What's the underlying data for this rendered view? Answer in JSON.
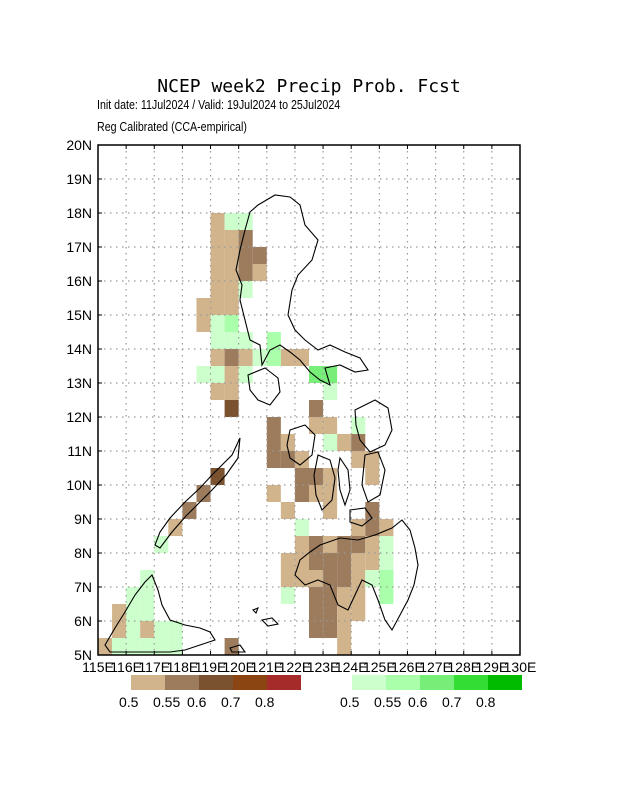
{
  "header": {
    "title": "NCEP week2 Precip Prob. Fcst",
    "init_line": "Init date: 11Jul2024 / Valid: 19Jul2024 to 25Jul2024",
    "method_line": "Reg Calibrated (CCA-empirical)"
  },
  "map": {
    "lon_range": [
      115,
      130
    ],
    "lat_range": [
      5,
      20
    ],
    "lat_labels": [
      "5N",
      "6N",
      "7N",
      "8N",
      "9N",
      "10N",
      "11N",
      "12N",
      "13N",
      "14N",
      "15N",
      "16N",
      "17N",
      "18N",
      "19N",
      "20N"
    ],
    "lon_labels": [
      "115E",
      "116E",
      "117E",
      "118E",
      "119E",
      "120E",
      "121E",
      "122E",
      "123E",
      "124E",
      "125E",
      "126E",
      "127E",
      "128E",
      "129E",
      "130E"
    ],
    "gridlines": "dotted",
    "cell_size_deg": 0.5,
    "dry_colors": [
      "#d2b48c",
      "#9c7c5c",
      "#7a5230",
      "#8b4513",
      "#a52a2a"
    ],
    "wet_colors": [
      "#ccffcc",
      "#aaffaa",
      "#77ee77",
      "#33dd33",
      "#00bb00"
    ],
    "cells": [
      {
        "lon": 119.25,
        "lat": 17.75,
        "cat": "d1"
      },
      {
        "lon": 119.75,
        "lat": 17.75,
        "cat": "w1"
      },
      {
        "lon": 120.25,
        "lat": 17.75,
        "cat": "w1"
      },
      {
        "lon": 119.25,
        "lat": 17.25,
        "cat": "d1"
      },
      {
        "lon": 119.75,
        "lat": 17.25,
        "cat": "d1"
      },
      {
        "lon": 120.25,
        "lat": 17.25,
        "cat": "d2"
      },
      {
        "lon": 119.25,
        "lat": 16.75,
        "cat": "d1"
      },
      {
        "lon": 119.75,
        "lat": 16.75,
        "cat": "d1"
      },
      {
        "lon": 120.25,
        "lat": 16.75,
        "cat": "d2"
      },
      {
        "lon": 120.75,
        "lat": 16.75,
        "cat": "d2"
      },
      {
        "lon": 119.25,
        "lat": 16.25,
        "cat": "d1"
      },
      {
        "lon": 119.75,
        "lat": 16.25,
        "cat": "d1"
      },
      {
        "lon": 120.25,
        "lat": 16.25,
        "cat": "d2"
      },
      {
        "lon": 120.75,
        "lat": 16.25,
        "cat": "d1"
      },
      {
        "lon": 119.25,
        "lat": 15.75,
        "cat": "d1"
      },
      {
        "lon": 119.75,
        "lat": 15.75,
        "cat": "d1"
      },
      {
        "lon": 120.25,
        "lat": 15.75,
        "cat": "w1"
      },
      {
        "lon": 118.75,
        "lat": 15.25,
        "cat": "d1"
      },
      {
        "lon": 119.25,
        "lat": 15.25,
        "cat": "d1"
      },
      {
        "lon": 119.75,
        "lat": 15.25,
        "cat": "d1"
      },
      {
        "lon": 118.75,
        "lat": 14.75,
        "cat": "d1"
      },
      {
        "lon": 119.25,
        "lat": 14.75,
        "cat": "w1"
      },
      {
        "lon": 119.75,
        "lat": 14.75,
        "cat": "w2"
      },
      {
        "lon": 119.25,
        "lat": 14.25,
        "cat": "w1"
      },
      {
        "lon": 119.75,
        "lat": 14.25,
        "cat": "w1"
      },
      {
        "lon": 120.25,
        "lat": 14.25,
        "cat": "w1"
      },
      {
        "lon": 121.25,
        "lat": 14.25,
        "cat": "w2"
      },
      {
        "lon": 119.25,
        "lat": 13.75,
        "cat": "d1"
      },
      {
        "lon": 119.75,
        "lat": 13.75,
        "cat": "d2"
      },
      {
        "lon": 120.25,
        "lat": 13.75,
        "cat": "d1"
      },
      {
        "lon": 120.75,
        "lat": 13.75,
        "cat": "w1"
      },
      {
        "lon": 121.25,
        "lat": 13.75,
        "cat": "w2"
      },
      {
        "lon": 121.75,
        "lat": 13.75,
        "cat": "d1"
      },
      {
        "lon": 122.25,
        "lat": 13.75,
        "cat": "d1"
      },
      {
        "lon": 118.75,
        "lat": 13.25,
        "cat": "w1"
      },
      {
        "lon": 119.25,
        "lat": 13.25,
        "cat": "w1"
      },
      {
        "lon": 119.75,
        "lat": 13.25,
        "cat": "d1"
      },
      {
        "lon": 120.25,
        "lat": 13.25,
        "cat": "w1"
      },
      {
        "lon": 122.75,
        "lat": 13.25,
        "cat": "w3"
      },
      {
        "lon": 123.25,
        "lat": 13.25,
        "cat": "w3"
      },
      {
        "lon": 119.25,
        "lat": 12.75,
        "cat": "d1"
      },
      {
        "lon": 119.75,
        "lat": 12.75,
        "cat": "d1"
      },
      {
        "lon": 123.25,
        "lat": 12.75,
        "cat": "w1"
      },
      {
        "lon": 119.75,
        "lat": 12.25,
        "cat": "d3"
      },
      {
        "lon": 122.75,
        "lat": 12.25,
        "cat": "d2"
      },
      {
        "lon": 121.25,
        "lat": 11.75,
        "cat": "d2"
      },
      {
        "lon": 122.75,
        "lat": 11.75,
        "cat": "d1"
      },
      {
        "lon": 123.25,
        "lat": 11.75,
        "cat": "d1"
      },
      {
        "lon": 124.25,
        "lat": 11.75,
        "cat": "w1"
      },
      {
        "lon": 121.25,
        "lat": 11.25,
        "cat": "d2"
      },
      {
        "lon": 121.75,
        "lat": 11.25,
        "cat": "d1"
      },
      {
        "lon": 123.25,
        "lat": 11.25,
        "cat": "w1"
      },
      {
        "lon": 123.75,
        "lat": 11.25,
        "cat": "d1"
      },
      {
        "lon": 124.25,
        "lat": 11.25,
        "cat": "d2"
      },
      {
        "lon": 121.25,
        "lat": 10.75,
        "cat": "d2"
      },
      {
        "lon": 121.75,
        "lat": 10.75,
        "cat": "d2"
      },
      {
        "lon": 122.25,
        "lat": 10.75,
        "cat": "d1"
      },
      {
        "lon": 124.25,
        "lat": 10.75,
        "cat": "d1"
      },
      {
        "lon": 124.75,
        "lat": 10.75,
        "cat": "d1"
      },
      {
        "lon": 122.25,
        "lat": 10.25,
        "cat": "d2"
      },
      {
        "lon": 122.75,
        "lat": 10.25,
        "cat": "d2"
      },
      {
        "lon": 123.25,
        "lat": 10.25,
        "cat": "d1"
      },
      {
        "lon": 124.75,
        "lat": 10.25,
        "cat": "d1"
      },
      {
        "lon": 119.25,
        "lat": 10.25,
        "cat": "d3"
      },
      {
        "lon": 118.75,
        "lat": 9.75,
        "cat": "d2"
      },
      {
        "lon": 121.25,
        "lat": 9.75,
        "cat": "d1"
      },
      {
        "lon": 122.25,
        "lat": 9.75,
        "cat": "d2"
      },
      {
        "lon": 122.75,
        "lat": 9.75,
        "cat": "d1"
      },
      {
        "lon": 123.25,
        "lat": 9.75,
        "cat": "d1"
      },
      {
        "lon": 121.75,
        "lat": 9.25,
        "cat": "d1"
      },
      {
        "lon": 123.25,
        "lat": 9.25,
        "cat": "d1"
      },
      {
        "lon": 124.75,
        "lat": 9.25,
        "cat": "d2"
      },
      {
        "lon": 118.25,
        "lat": 9.25,
        "cat": "d2"
      },
      {
        "lon": 117.75,
        "lat": 8.75,
        "cat": "d1"
      },
      {
        "lon": 122.25,
        "lat": 8.75,
        "cat": "w1"
      },
      {
        "lon": 124.25,
        "lat": 8.75,
        "cat": "d1"
      },
      {
        "lon": 124.75,
        "lat": 8.75,
        "cat": "d2"
      },
      {
        "lon": 125.25,
        "lat": 8.75,
        "cat": "d1"
      },
      {
        "lon": 117.25,
        "lat": 8.25,
        "cat": "w1"
      },
      {
        "lon": 122.25,
        "lat": 8.25,
        "cat": "d1"
      },
      {
        "lon": 122.75,
        "lat": 8.25,
        "cat": "d2"
      },
      {
        "lon": 123.25,
        "lat": 8.25,
        "cat": "d1"
      },
      {
        "lon": 123.75,
        "lat": 8.25,
        "cat": "d2"
      },
      {
        "lon": 124.25,
        "lat": 8.25,
        "cat": "d2"
      },
      {
        "lon": 124.75,
        "lat": 8.25,
        "cat": "d1"
      },
      {
        "lon": 125.25,
        "lat": 8.25,
        "cat": "w1"
      },
      {
        "lon": 121.75,
        "lat": 7.75,
        "cat": "d1"
      },
      {
        "lon": 122.25,
        "lat": 7.75,
        "cat": "d1"
      },
      {
        "lon": 122.75,
        "lat": 7.75,
        "cat": "d2"
      },
      {
        "lon": 123.25,
        "lat": 7.75,
        "cat": "d2"
      },
      {
        "lon": 123.75,
        "lat": 7.75,
        "cat": "d2"
      },
      {
        "lon": 124.25,
        "lat": 7.75,
        "cat": "d1"
      },
      {
        "lon": 124.75,
        "lat": 7.75,
        "cat": "d1"
      },
      {
        "lon": 125.25,
        "lat": 7.75,
        "cat": "w1"
      },
      {
        "lon": 121.75,
        "lat": 7.25,
        "cat": "d1"
      },
      {
        "lon": 122.25,
        "lat": 7.25,
        "cat": "d1"
      },
      {
        "lon": 122.75,
        "lat": 7.25,
        "cat": "d1"
      },
      {
        "lon": 123.25,
        "lat": 7.25,
        "cat": "d2"
      },
      {
        "lon": 123.75,
        "lat": 7.25,
        "cat": "d2"
      },
      {
        "lon": 124.25,
        "lat": 7.25,
        "cat": "d1"
      },
      {
        "lon": 124.75,
        "lat": 7.25,
        "cat": "w1"
      },
      {
        "lon": 125.25,
        "lat": 7.25,
        "cat": "w2"
      },
      {
        "lon": 116.75,
        "lat": 7.25,
        "cat": "w1"
      },
      {
        "lon": 116.25,
        "lat": 6.75,
        "cat": "w1"
      },
      {
        "lon": 116.75,
        "lat": 6.75,
        "cat": "w1"
      },
      {
        "lon": 121.75,
        "lat": 6.75,
        "cat": "w1"
      },
      {
        "lon": 122.75,
        "lat": 6.75,
        "cat": "d2"
      },
      {
        "lon": 123.25,
        "lat": 6.75,
        "cat": "d2"
      },
      {
        "lon": 123.75,
        "lat": 6.75,
        "cat": "d1"
      },
      {
        "lon": 124.25,
        "lat": 6.75,
        "cat": "d1"
      },
      {
        "lon": 125.25,
        "lat": 6.75,
        "cat": "w2"
      },
      {
        "lon": 116.25,
        "lat": 6.25,
        "cat": "w1"
      },
      {
        "lon": 116.75,
        "lat": 6.25,
        "cat": "w1"
      },
      {
        "lon": 115.75,
        "lat": 6.25,
        "cat": "d1"
      },
      {
        "lon": 122.75,
        "lat": 6.25,
        "cat": "d2"
      },
      {
        "lon": 123.25,
        "lat": 6.25,
        "cat": "d2"
      },
      {
        "lon": 123.75,
        "lat": 6.25,
        "cat": "d1"
      },
      {
        "lon": 124.25,
        "lat": 6.25,
        "cat": "d1"
      },
      {
        "lon": 115.75,
        "lat": 5.75,
        "cat": "d1"
      },
      {
        "lon": 116.25,
        "lat": 5.75,
        "cat": "w1"
      },
      {
        "lon": 116.75,
        "lat": 5.75,
        "cat": "d1"
      },
      {
        "lon": 117.25,
        "lat": 5.75,
        "cat": "w1"
      },
      {
        "lon": 117.75,
        "lat": 5.75,
        "cat": "w1"
      },
      {
        "lon": 122.75,
        "lat": 5.75,
        "cat": "d2"
      },
      {
        "lon": 123.25,
        "lat": 5.75,
        "cat": "d2"
      },
      {
        "lon": 123.75,
        "lat": 5.75,
        "cat": "d1"
      },
      {
        "lon": 115.25,
        "lat": 5.25,
        "cat": "d1"
      },
      {
        "lon": 115.75,
        "lat": 5.25,
        "cat": "w1"
      },
      {
        "lon": 116.25,
        "lat": 5.25,
        "cat": "w1"
      },
      {
        "lon": 116.75,
        "lat": 5.25,
        "cat": "w1"
      },
      {
        "lon": 117.25,
        "lat": 5.25,
        "cat": "w1"
      },
      {
        "lon": 117.75,
        "lat": 5.25,
        "cat": "w1"
      },
      {
        "lon": 119.75,
        "lat": 5.25,
        "cat": "d2"
      },
      {
        "lon": 123.75,
        "lat": 5.25,
        "cat": "d1"
      }
    ]
  },
  "legend": {
    "dry": {
      "colors": [
        "#d2b48c",
        "#9c7c5c",
        "#7a5230",
        "#8b4513",
        "#a52a2a"
      ],
      "labels": [
        "0.5",
        "0.55",
        "0.6",
        "0.7",
        "0.8"
      ]
    },
    "wet": {
      "colors": [
        "#ccffcc",
        "#aaffaa",
        "#77ee77",
        "#33dd33",
        "#00bb00"
      ],
      "labels": [
        "0.5",
        "0.55",
        "0.6",
        "0.7",
        "0.8"
      ]
    }
  }
}
